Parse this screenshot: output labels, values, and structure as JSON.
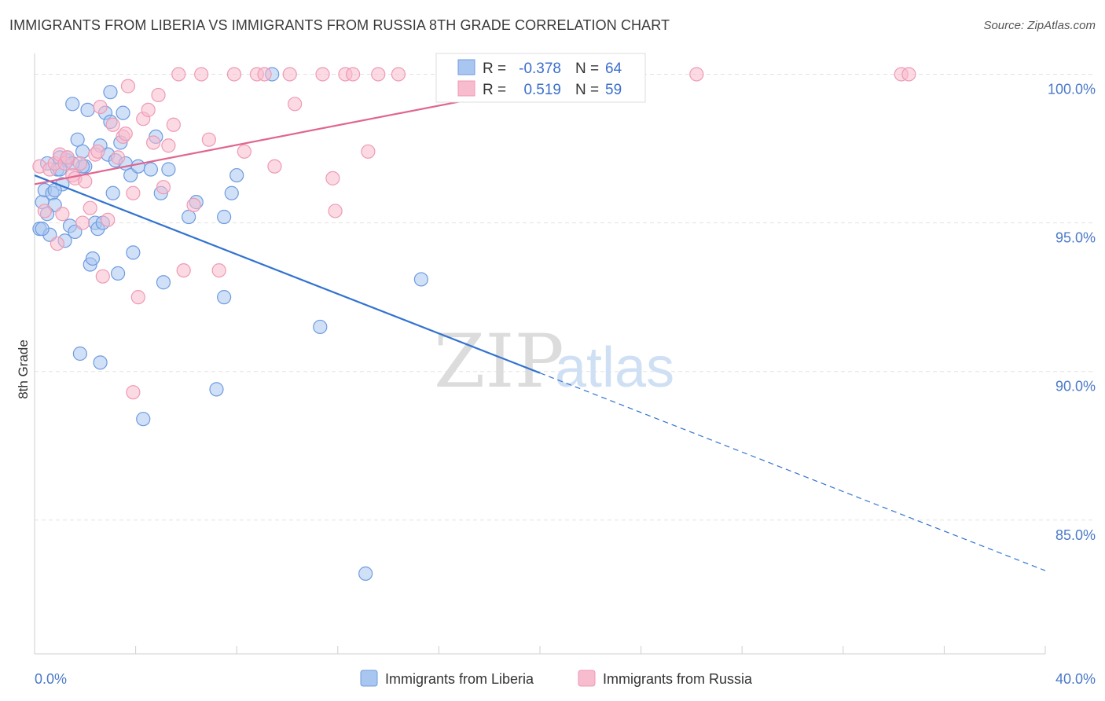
{
  "title": "IMMIGRANTS FROM LIBERIA VS IMMIGRANTS FROM RUSSIA 8TH GRADE CORRELATION CHART",
  "source": "Source: ZipAtlas.com",
  "watermark": {
    "zip": "ZIP",
    "atlas": "atlas"
  },
  "colors": {
    "liberia_fill": "#a9c6f0",
    "liberia_stroke": "#6f9be0",
    "liberia_line": "#3273d0",
    "russia_fill": "#f7bccd",
    "russia_stroke": "#ef9ab4",
    "russia_line": "#e0668f",
    "tick_text": "#4a79c9",
    "grid": "#e3e3e3"
  },
  "legend": {
    "rows": [
      {
        "r_label": "R =",
        "r_value": "-0.378",
        "n_label": "N =",
        "n_value": "64"
      },
      {
        "r_label": "R =",
        "r_value": "0.519",
        "n_label": "N =",
        "n_value": "59"
      }
    ]
  },
  "chart_data": {
    "type": "scatter",
    "xlabel": "",
    "ylabel": "8th Grade",
    "xlim": [
      0,
      40
    ],
    "ylim": [
      80.5,
      100.7
    ],
    "x_tick_labels": [
      "0.0%",
      "40.0%"
    ],
    "y_ticks": [
      85,
      90,
      95,
      100
    ],
    "y_tick_labels": [
      "85.0%",
      "90.0%",
      "95.0%",
      "100.0%"
    ],
    "grid": true,
    "series": [
      {
        "name": "Immigrants from Liberia",
        "points": [
          [
            0.2,
            94.8
          ],
          [
            0.3,
            95.7
          ],
          [
            0.4,
            96.1
          ],
          [
            0.5,
            97.0
          ],
          [
            0.6,
            94.6
          ],
          [
            0.7,
            96.0
          ],
          [
            0.8,
            95.6
          ],
          [
            0.9,
            96.8
          ],
          [
            1.0,
            97.2
          ],
          [
            1.1,
            96.3
          ],
          [
            1.2,
            94.4
          ],
          [
            1.3,
            97.1
          ],
          [
            1.4,
            94.9
          ],
          [
            1.5,
            99.0
          ],
          [
            1.6,
            94.7
          ],
          [
            1.7,
            97.8
          ],
          [
            1.8,
            90.6
          ],
          [
            1.9,
            97.4
          ],
          [
            2.0,
            96.9
          ],
          [
            2.1,
            98.8
          ],
          [
            2.2,
            93.6
          ],
          [
            2.3,
            93.8
          ],
          [
            2.4,
            95.0
          ],
          [
            2.5,
            94.8
          ],
          [
            2.6,
            90.3
          ],
          [
            2.6,
            97.6
          ],
          [
            2.7,
            95.0
          ],
          [
            2.8,
            98.7
          ],
          [
            2.9,
            97.3
          ],
          [
            3.0,
            98.4
          ],
          [
            3.0,
            99.4
          ],
          [
            3.1,
            96.0
          ],
          [
            3.2,
            97.1
          ],
          [
            3.3,
            93.3
          ],
          [
            3.4,
            97.7
          ],
          [
            3.5,
            98.7
          ],
          [
            3.6,
            97.0
          ],
          [
            3.8,
            96.6
          ],
          [
            3.9,
            94.0
          ],
          [
            4.1,
            96.9
          ],
          [
            4.3,
            88.4
          ],
          [
            4.6,
            96.8
          ],
          [
            4.8,
            97.9
          ],
          [
            5.0,
            96.0
          ],
          [
            5.1,
            93.0
          ],
          [
            5.3,
            96.8
          ],
          [
            6.1,
            95.2
          ],
          [
            6.4,
            95.7
          ],
          [
            7.5,
            95.2
          ],
          [
            7.5,
            92.5
          ],
          [
            7.2,
            89.4
          ],
          [
            7.8,
            96.0
          ],
          [
            8.0,
            96.6
          ],
          [
            9.4,
            100.0
          ],
          [
            11.3,
            91.5
          ],
          [
            13.1,
            83.2
          ],
          [
            15.3,
            93.1
          ],
          [
            0.3,
            94.8
          ],
          [
            0.8,
            96.1
          ],
          [
            1.3,
            97.2
          ],
          [
            1.9,
            96.9
          ],
          [
            0.5,
            95.3
          ],
          [
            1.0,
            96.8
          ],
          [
            1.5,
            97.0
          ]
        ]
      },
      {
        "name": "Immigrants from Russia",
        "points": [
          [
            0.2,
            96.9
          ],
          [
            0.4,
            95.4
          ],
          [
            0.6,
            96.8
          ],
          [
            0.8,
            97.0
          ],
          [
            0.9,
            94.3
          ],
          [
            1.0,
            97.3
          ],
          [
            1.1,
            95.3
          ],
          [
            1.2,
            97.0
          ],
          [
            1.3,
            97.2
          ],
          [
            1.5,
            96.6
          ],
          [
            1.6,
            96.5
          ],
          [
            1.8,
            97.0
          ],
          [
            1.9,
            95.0
          ],
          [
            2.0,
            96.4
          ],
          [
            2.2,
            95.5
          ],
          [
            2.4,
            97.3
          ],
          [
            2.5,
            97.4
          ],
          [
            2.6,
            98.9
          ],
          [
            2.7,
            93.2
          ],
          [
            2.9,
            95.1
          ],
          [
            3.1,
            98.3
          ],
          [
            3.3,
            97.2
          ],
          [
            3.5,
            97.9
          ],
          [
            3.6,
            98.0
          ],
          [
            3.7,
            99.6
          ],
          [
            3.9,
            96.0
          ],
          [
            3.9,
            89.3
          ],
          [
            4.1,
            92.5
          ],
          [
            4.3,
            98.5
          ],
          [
            4.5,
            98.8
          ],
          [
            4.7,
            97.7
          ],
          [
            4.9,
            99.3
          ],
          [
            5.1,
            96.2
          ],
          [
            5.3,
            97.6
          ],
          [
            5.5,
            98.3
          ],
          [
            5.7,
            100.0
          ],
          [
            5.9,
            93.4
          ],
          [
            6.3,
            95.6
          ],
          [
            6.6,
            100.0
          ],
          [
            6.9,
            97.8
          ],
          [
            7.3,
            93.4
          ],
          [
            7.9,
            100.0
          ],
          [
            8.3,
            97.4
          ],
          [
            8.8,
            100.0
          ],
          [
            9.1,
            100.0
          ],
          [
            9.5,
            96.9
          ],
          [
            10.1,
            100.0
          ],
          [
            10.3,
            99.0
          ],
          [
            11.4,
            100.0
          ],
          [
            11.8,
            96.5
          ],
          [
            11.9,
            95.4
          ],
          [
            12.3,
            100.0
          ],
          [
            12.6,
            100.0
          ],
          [
            13.2,
            97.4
          ],
          [
            13.6,
            100.0
          ],
          [
            14.4,
            100.0
          ],
          [
            26.2,
            100.0
          ],
          [
            34.3,
            100.0
          ],
          [
            34.6,
            100.0
          ]
        ]
      }
    ],
    "trendlines": [
      {
        "series": "Immigrants from Liberia",
        "x0": 0.0,
        "y0": 96.6,
        "x1": 40.0,
        "y1": 83.3,
        "solid_until": 20.0
      },
      {
        "series": "Immigrants from Russia",
        "x0": 0.0,
        "y0": 96.3,
        "x1": 22.4,
        "y1": 100.0,
        "solid_until": 22.4
      }
    ]
  }
}
